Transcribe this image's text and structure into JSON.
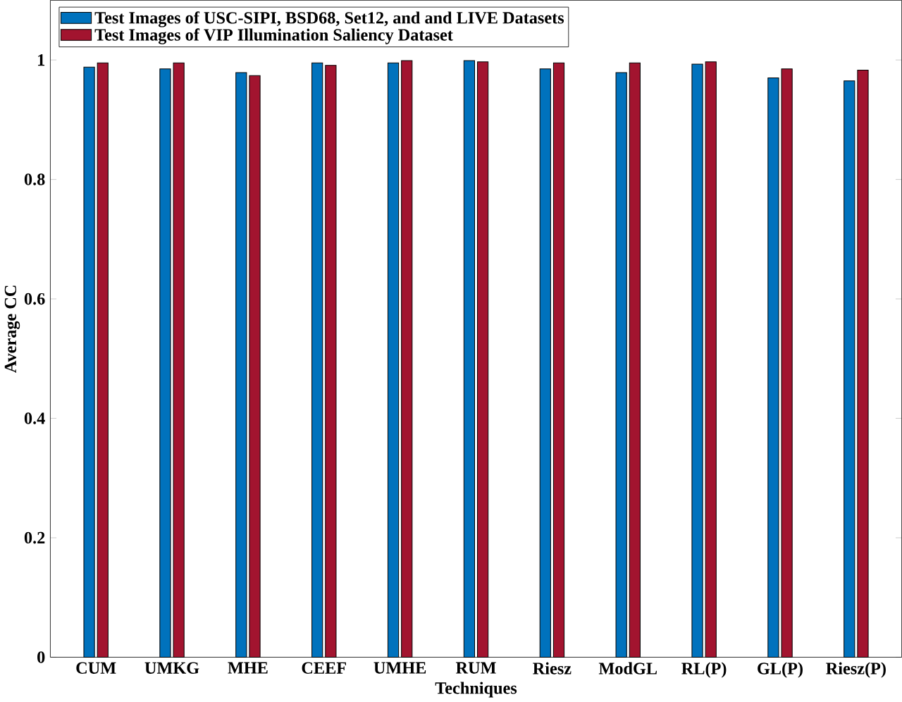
{
  "chart_data": {
    "type": "bar",
    "xlabel": "Techniques",
    "ylabel": "Average CC",
    "categories": [
      "CUM",
      "UMKG",
      "MHE",
      "CEEF",
      "UMHE",
      "RUM",
      "Riesz",
      "ModGL",
      "RL(P)",
      "GL(P)",
      "Riesz(P)"
    ],
    "series": [
      {
        "name": "Test Images of USC-SIPI, BSD68, Set12, and and LIVE Datasets",
        "color": "#0072bd",
        "values": [
          0.988,
          0.985,
          0.979,
          0.995,
          0.995,
          0.999,
          0.985,
          0.979,
          0.993,
          0.97,
          0.965
        ]
      },
      {
        "name": "Test Images of VIP Illumination Saliency Dataset",
        "color": "#a2142f",
        "values": [
          0.995,
          0.995,
          0.974,
          0.991,
          0.999,
          0.997,
          0.995,
          0.995,
          0.997,
          0.985,
          0.983
        ]
      }
    ],
    "ylim": [
      0,
      1.1
    ],
    "yticks": [
      0,
      0.2,
      0.4,
      0.6,
      0.8,
      1
    ],
    "legend": "top left",
    "grid": false
  }
}
